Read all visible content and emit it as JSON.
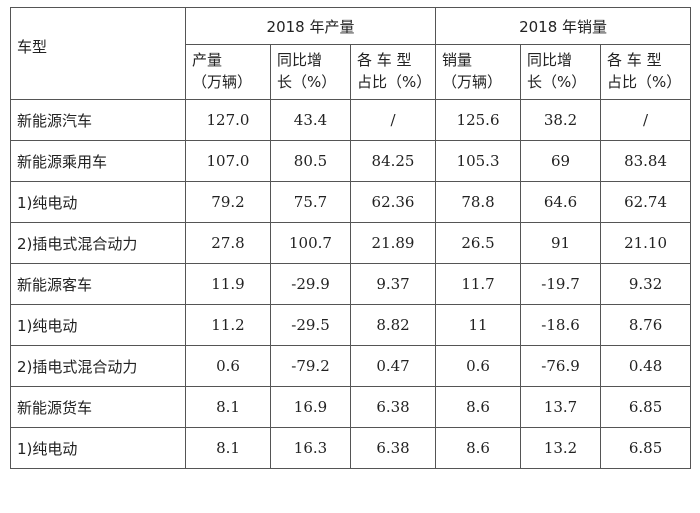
{
  "header": {
    "type_label": "车型",
    "production_group": "2018 年产量",
    "sales_group": "2018 年销量",
    "production_cols": [
      "产量\n（万辆）",
      "同比增\n长（%）",
      "各 车 型\n占比（%）"
    ],
    "sales_cols": [
      "销量\n（万辆）",
      "同比增\n长（%）",
      "各 车 型\n占比（%）"
    ]
  },
  "rows": [
    {
      "name": "新能源汽车",
      "values": [
        "127.0",
        "43.4",
        "/",
        "125.6",
        "38.2",
        "/"
      ]
    },
    {
      "name": "新能源乘用车",
      "values": [
        "107.0",
        "80.5",
        "84.25",
        "105.3",
        "69",
        "83.84"
      ]
    },
    {
      "name": "1)纯电动",
      "values": [
        "79.2",
        "75.7",
        "62.36",
        "78.8",
        "64.6",
        "62.74"
      ]
    },
    {
      "name": "2)插电式混合动力",
      "values": [
        "27.8",
        "100.7",
        "21.89",
        "26.5",
        "91",
        "21.10"
      ]
    },
    {
      "name": "新能源客车",
      "values": [
        "11.9",
        "-29.9",
        "9.37",
        "11.7",
        "-19.7",
        "9.32"
      ]
    },
    {
      "name": "1)纯电动",
      "values": [
        "11.2",
        "-29.5",
        "8.82",
        "11",
        "-18.6",
        "8.76"
      ]
    },
    {
      "name": "2)插电式混合动力",
      "values": [
        "0.6",
        "-79.2",
        "0.47",
        "0.6",
        "-76.9",
        "0.48"
      ]
    },
    {
      "name": "新能源货车",
      "values": [
        "8.1",
        "16.9",
        "6.38",
        "8.6",
        "13.7",
        "6.85"
      ]
    },
    {
      "name": "1)纯电动",
      "values": [
        "8.1",
        "16.3",
        "6.38",
        "8.6",
        "13.2",
        "6.85"
      ]
    }
  ]
}
